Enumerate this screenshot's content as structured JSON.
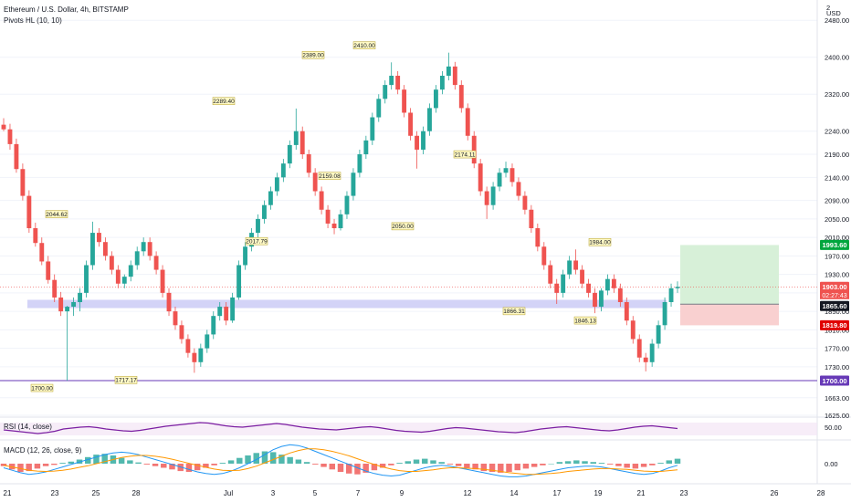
{
  "header": {
    "symbol_title": "Ethereum / U.S. Dollar, 4h, BITSTAMP",
    "indicator_label": "Pivots HL (10, 10)",
    "currency": "USD",
    "top_corner_price": "2"
  },
  "colors": {
    "up": "#26a69a",
    "down": "#ef5350",
    "support_band": "#c8c8f5",
    "support_line": "#673ab7",
    "target_zone": "#d7f0d8",
    "stop_zone": "#f9d0d0",
    "rsi_line": "#7b1fa2",
    "macd_line": "#2196f3",
    "signal_line": "#ff9800",
    "last_price_tag": "#ef5350"
  },
  "price_axis": {
    "ticks": [
      "2480.00",
      "2400.00",
      "2320.00",
      "2240.00",
      "2190.00",
      "2140.00",
      "2090.00",
      "2050.00",
      "2010.00",
      "1970.00",
      "1930.00",
      "1890.00",
      "1850.00",
      "1810.00",
      "1770.00",
      "1730.00",
      "1663.00",
      "1625.00"
    ]
  },
  "price_tags": {
    "target": "1993.60",
    "last_price": "1903.00",
    "countdown": "02:27:43",
    "entry": "1865.60",
    "stop": "1819.80",
    "support": "1700.00"
  },
  "time_axis": {
    "labels": [
      "21",
      "23",
      "25",
      "28",
      "Jul",
      "3",
      "5",
      "7",
      "9",
      "12",
      "14",
      "17",
      "19",
      "21",
      "23",
      "26",
      "28"
    ]
  },
  "pivot_labels": [
    "2044.62",
    "1700.00",
    "1717.17",
    "2289.40",
    "2017.79",
    "2389.00",
    "2159.08",
    "2410.00",
    "2050.00",
    "2174.11",
    "1866.31",
    "1984.00",
    "1846.13"
  ],
  "rsi": {
    "label": "RSI (14, close)",
    "value_tag": "50.00"
  },
  "macd": {
    "label": "MACD (12, 26, close, 9)",
    "value_tag": "0.00"
  },
  "chart_data": {
    "type": "candlestick",
    "title": "Ethereum / U.S. Dollar, 4h, BITSTAMP",
    "xlabel": "",
    "ylabel": "",
    "ylim": [
      1625,
      2520
    ],
    "candles_ohlc": [
      [
        2254,
        2268,
        2240,
        2244
      ],
      [
        2244,
        2256,
        2200,
        2212
      ],
      [
        2212,
        2224,
        2150,
        2158
      ],
      [
        2158,
        2170,
        2090,
        2100
      ],
      [
        2100,
        2112,
        2020,
        2030
      ],
      [
        2030,
        2042,
        1990,
        1998
      ],
      [
        1998,
        2010,
        1950,
        1958
      ],
      [
        1958,
        1970,
        1910,
        1918
      ],
      [
        1918,
        1930,
        1870,
        1880
      ],
      [
        1880,
        1892,
        1840,
        1850
      ],
      [
        1850,
        1862,
        1700,
        1860
      ],
      [
        1860,
        1880,
        1840,
        1870
      ],
      [
        1870,
        1900,
        1850,
        1890
      ],
      [
        1890,
        1960,
        1880,
        1950
      ],
      [
        1950,
        2044,
        1940,
        2020
      ],
      [
        2020,
        2030,
        1990,
        2000
      ],
      [
        2000,
        2010,
        1960,
        1970
      ],
      [
        1970,
        1980,
        1930,
        1940
      ],
      [
        1940,
        1950,
        1900,
        1910
      ],
      [
        1910,
        1930,
        1900,
        1925
      ],
      [
        1925,
        1960,
        1915,
        1950
      ],
      [
        1950,
        1990,
        1940,
        1980
      ],
      [
        1980,
        2010,
        1970,
        2000
      ],
      [
        2000,
        2010,
        1960,
        1970
      ],
      [
        1970,
        1980,
        1930,
        1940
      ],
      [
        1940,
        1950,
        1880,
        1890
      ],
      [
        1890,
        1900,
        1840,
        1850
      ],
      [
        1850,
        1860,
        1810,
        1820
      ],
      [
        1820,
        1830,
        1780,
        1790
      ],
      [
        1790,
        1800,
        1750,
        1760
      ],
      [
        1760,
        1770,
        1717,
        1740
      ],
      [
        1740,
        1780,
        1730,
        1770
      ],
      [
        1770,
        1810,
        1760,
        1800
      ],
      [
        1800,
        1850,
        1790,
        1840
      ],
      [
        1840,
        1870,
        1830,
        1860
      ],
      [
        1860,
        1870,
        1820,
        1830
      ],
      [
        1830,
        1890,
        1825,
        1880
      ],
      [
        1880,
        1960,
        1875,
        1950
      ],
      [
        1950,
        2000,
        1940,
        1990
      ],
      [
        1990,
        2030,
        1980,
        2020
      ],
      [
        2020,
        2060,
        2010,
        2050
      ],
      [
        2050,
        2090,
        2040,
        2080
      ],
      [
        2080,
        2120,
        2070,
        2110
      ],
      [
        2110,
        2150,
        2100,
        2140
      ],
      [
        2140,
        2180,
        2130,
        2170
      ],
      [
        2170,
        2220,
        2160,
        2210
      ],
      [
        2210,
        2289,
        2200,
        2240
      ],
      [
        2240,
        2250,
        2180,
        2190
      ],
      [
        2190,
        2200,
        2140,
        2150
      ],
      [
        2150,
        2160,
        2100,
        2110
      ],
      [
        2110,
        2120,
        2060,
        2070
      ],
      [
        2070,
        2080,
        2030,
        2040
      ],
      [
        2040,
        2050,
        2017,
        2030
      ],
      [
        2030,
        2070,
        2025,
        2060
      ],
      [
        2060,
        2110,
        2050,
        2100
      ],
      [
        2100,
        2160,
        2090,
        2150
      ],
      [
        2150,
        2200,
        2140,
        2190
      ],
      [
        2190,
        2230,
        2180,
        2220
      ],
      [
        2220,
        2280,
        2210,
        2270
      ],
      [
        2270,
        2320,
        2260,
        2310
      ],
      [
        2310,
        2350,
        2300,
        2340
      ],
      [
        2340,
        2389,
        2330,
        2360
      ],
      [
        2360,
        2370,
        2320,
        2330
      ],
      [
        2330,
        2340,
        2270,
        2280
      ],
      [
        2280,
        2290,
        2220,
        2230
      ],
      [
        2230,
        2240,
        2159,
        2200
      ],
      [
        2200,
        2250,
        2190,
        2240
      ],
      [
        2240,
        2300,
        2230,
        2290
      ],
      [
        2290,
        2340,
        2280,
        2330
      ],
      [
        2330,
        2370,
        2320,
        2360
      ],
      [
        2360,
        2410,
        2350,
        2380
      ],
      [
        2380,
        2390,
        2330,
        2340
      ],
      [
        2340,
        2350,
        2280,
        2290
      ],
      [
        2290,
        2300,
        2220,
        2230
      ],
      [
        2230,
        2240,
        2160,
        2170
      ],
      [
        2170,
        2180,
        2100,
        2110
      ],
      [
        2110,
        2120,
        2050,
        2080
      ],
      [
        2080,
        2130,
        2070,
        2120
      ],
      [
        2120,
        2160,
        2110,
        2150
      ],
      [
        2150,
        2174,
        2140,
        2160
      ],
      [
        2160,
        2170,
        2120,
        2130
      ],
      [
        2130,
        2140,
        2090,
        2100
      ],
      [
        2100,
        2110,
        2060,
        2070
      ],
      [
        2070,
        2080,
        2020,
        2030
      ],
      [
        2030,
        2040,
        1980,
        1990
      ],
      [
        1990,
        2000,
        1940,
        1950
      ],
      [
        1950,
        1960,
        1900,
        1910
      ],
      [
        1910,
        1920,
        1866,
        1890
      ],
      [
        1890,
        1940,
        1880,
        1930
      ],
      [
        1930,
        1970,
        1920,
        1960
      ],
      [
        1960,
        1984,
        1930,
        1940
      ],
      [
        1940,
        1950,
        1900,
        1910
      ],
      [
        1910,
        1920,
        1880,
        1890
      ],
      [
        1890,
        1900,
        1846,
        1860
      ],
      [
        1860,
        1900,
        1850,
        1895
      ],
      [
        1895,
        1930,
        1885,
        1920
      ],
      [
        1920,
        1930,
        1890,
        1900
      ],
      [
        1900,
        1910,
        1860,
        1870
      ],
      [
        1870,
        1880,
        1820,
        1830
      ],
      [
        1830,
        1840,
        1780,
        1790
      ],
      [
        1790,
        1800,
        1740,
        1750
      ],
      [
        1750,
        1760,
        1720,
        1740
      ],
      [
        1740,
        1790,
        1730,
        1780
      ],
      [
        1780,
        1830,
        1770,
        1820
      ],
      [
        1820,
        1880,
        1810,
        1870
      ],
      [
        1870,
        1910,
        1860,
        1900
      ],
      [
        1900,
        1915,
        1890,
        1903
      ]
    ],
    "support_band": [
      1857,
      1875
    ],
    "support_level": 1700,
    "long_position": {
      "entry": 1865.6,
      "target": 1993.6,
      "stop": 1819.8
    },
    "rsi_values": [
      48,
      46,
      44,
      42,
      40,
      42,
      45,
      50,
      52,
      54,
      55,
      53,
      50,
      48,
      46,
      45,
      47,
      50,
      53,
      56,
      58,
      60,
      62,
      64,
      63,
      60,
      57,
      55,
      54,
      56,
      58,
      60,
      62,
      60,
      57,
      54,
      52,
      50,
      49,
      48,
      50,
      52,
      54,
      55,
      53,
      50,
      47,
      45,
      44,
      43,
      45,
      48,
      51,
      53,
      52,
      50,
      48,
      46,
      44,
      43,
      42,
      44,
      47,
      50,
      52,
      54,
      55,
      53,
      51,
      49,
      47,
      46,
      48,
      51,
      54,
      56,
      57,
      55,
      53,
      51
    ],
    "macd_hist": [
      -6,
      -14,
      -20,
      -18,
      -12,
      -6,
      -3,
      2,
      5,
      10,
      16,
      22,
      24,
      20,
      14,
      8,
      3,
      -2,
      -6,
      -10,
      -14,
      -18,
      -20,
      -16,
      -10,
      -4,
      2,
      8,
      14,
      20,
      26,
      30,
      28,
      22,
      16,
      10,
      4,
      -2,
      -8,
      -14,
      -20,
      -24,
      -26,
      -22,
      -16,
      -10,
      -4,
      2,
      6,
      10,
      12,
      8,
      4,
      -2,
      -6,
      -10,
      -14,
      -18,
      -20,
      -22,
      -20,
      -16,
      -12,
      -8,
      -4,
      0,
      4,
      6,
      8,
      6,
      4,
      2,
      -2,
      -6,
      -10,
      -12,
      -8,
      -4,
      2,
      8,
      12
    ],
    "macd_line": [
      -10,
      -16,
      -22,
      -26,
      -24,
      -20,
      -14,
      -8,
      -2,
      4,
      10,
      16,
      22,
      26,
      28,
      26,
      22,
      16,
      10,
      4,
      -2,
      -8,
      -14,
      -20,
      -24,
      -26,
      -24,
      -18,
      -10,
      0,
      10,
      22,
      34,
      42,
      46,
      44,
      38,
      30,
      22,
      14,
      6,
      -2,
      -10,
      -18,
      -24,
      -28,
      -30,
      -28,
      -22,
      -16,
      -10,
      -6,
      -4,
      -6,
      -10,
      -14,
      -18,
      -22,
      -26,
      -30,
      -32,
      -32,
      -30,
      -26,
      -22,
      -18,
      -14,
      -10,
      -8,
      -6,
      -6,
      -8,
      -12,
      -16,
      -20,
      -24,
      -26,
      -24,
      -18,
      -10,
      -4
    ],
    "signal_line": [
      -4,
      -8,
      -12,
      -16,
      -18,
      -19,
      -18,
      -16,
      -13,
      -9,
      -5,
      0,
      5,
      10,
      15,
      18,
      20,
      20,
      18,
      15,
      11,
      6,
      1,
      -4,
      -9,
      -13,
      -16,
      -17,
      -16,
      -12,
      -6,
      2,
      10,
      18,
      26,
      32,
      36,
      36,
      34,
      30,
      25,
      19,
      12,
      5,
      -2,
      -8,
      -13,
      -17,
      -19,
      -19,
      -17,
      -15,
      -12,
      -10,
      -10,
      -11,
      -12,
      -14,
      -16,
      -19,
      -22,
      -24,
      -26,
      -26,
      -25,
      -24,
      -22,
      -19,
      -17,
      -15,
      -13,
      -12,
      -12,
      -13,
      -14,
      -16,
      -18,
      -19,
      -19,
      -17,
      -15
    ]
  }
}
